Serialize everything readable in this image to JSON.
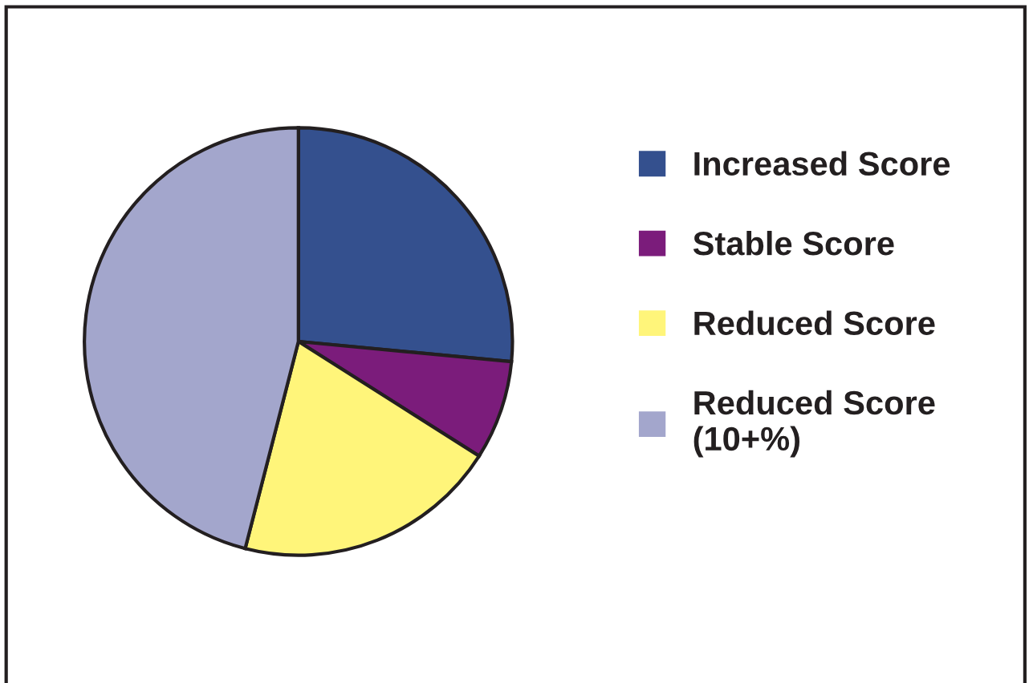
{
  "chart_data": {
    "type": "pie",
    "categories": [
      "Increased Score",
      "Stable Score",
      "Reduced Score",
      "Reduced Score\n(10+%)"
    ],
    "values": [
      26.5,
      7.5,
      20,
      46
    ],
    "colors": [
      "#34508e",
      "#7b1c7b",
      "#fff57a",
      "#a3a6cc"
    ],
    "legend": "right"
  }
}
